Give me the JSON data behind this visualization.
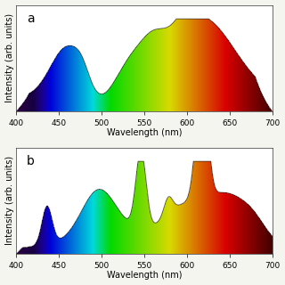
{
  "xlim": [
    400,
    700
  ],
  "xlabel": "Wavelength (nm)",
  "ylabel": "Intensity (arb. units)",
  "background_color": "#f5f5f0",
  "panel_a_label": "a",
  "panel_b_label": "b",
  "title_fontsize": 9,
  "axis_fontsize": 7,
  "tick_fontsize": 6.5
}
